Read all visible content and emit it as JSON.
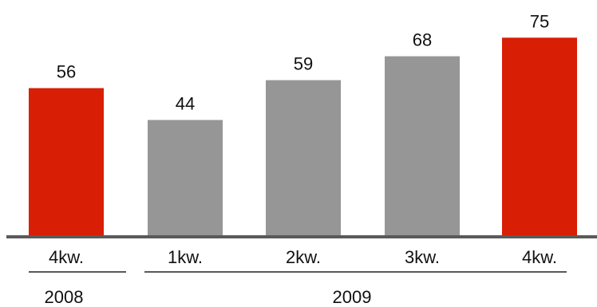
{
  "chart_data": {
    "type": "bar",
    "categories": [
      "4kw.",
      "1kw.",
      "2kw.",
      "3kw.",
      "4kw."
    ],
    "values": [
      56,
      44,
      59,
      68,
      75
    ],
    "groups": [
      {
        "label": "2008",
        "categories": [
          "4kw."
        ]
      },
      {
        "label": "2009",
        "categories": [
          "1kw.",
          "2kw.",
          "3kw.",
          "4kw."
        ]
      }
    ],
    "bar_colors": [
      "#d81e05",
      "#969696",
      "#969696",
      "#969696",
      "#d81e05"
    ],
    "axis_color": "#5a5a5a",
    "title": "",
    "xlabel": "",
    "ylabel": "",
    "ylim": [
      0,
      80
    ],
    "grid": false,
    "legend": "none"
  }
}
